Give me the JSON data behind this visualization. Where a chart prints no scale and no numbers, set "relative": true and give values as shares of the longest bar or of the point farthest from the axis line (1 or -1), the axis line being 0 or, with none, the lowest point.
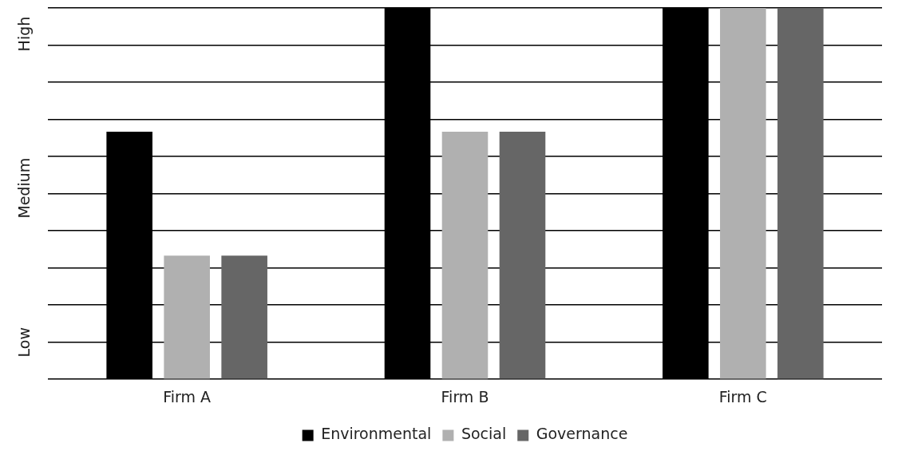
{
  "chart_data": {
    "type": "bar",
    "categories": [
      "Firm A",
      "Firm B",
      "Firm C"
    ],
    "series": [
      {
        "name": "Environmental",
        "color": "#000000",
        "values": [
          0.667,
          1,
          1
        ]
      },
      {
        "name": "Social",
        "color": "#b0b0b0",
        "values": [
          0.333,
          0.667,
          1
        ]
      },
      {
        "name": "Governance",
        "color": "#666666",
        "values": [
          0.333,
          0.667,
          1
        ]
      }
    ],
    "relative": true,
    "annotations": [
      "Low",
      "Medium",
      "High"
    ],
    "grid": "y",
    "legend": "bottom"
  }
}
